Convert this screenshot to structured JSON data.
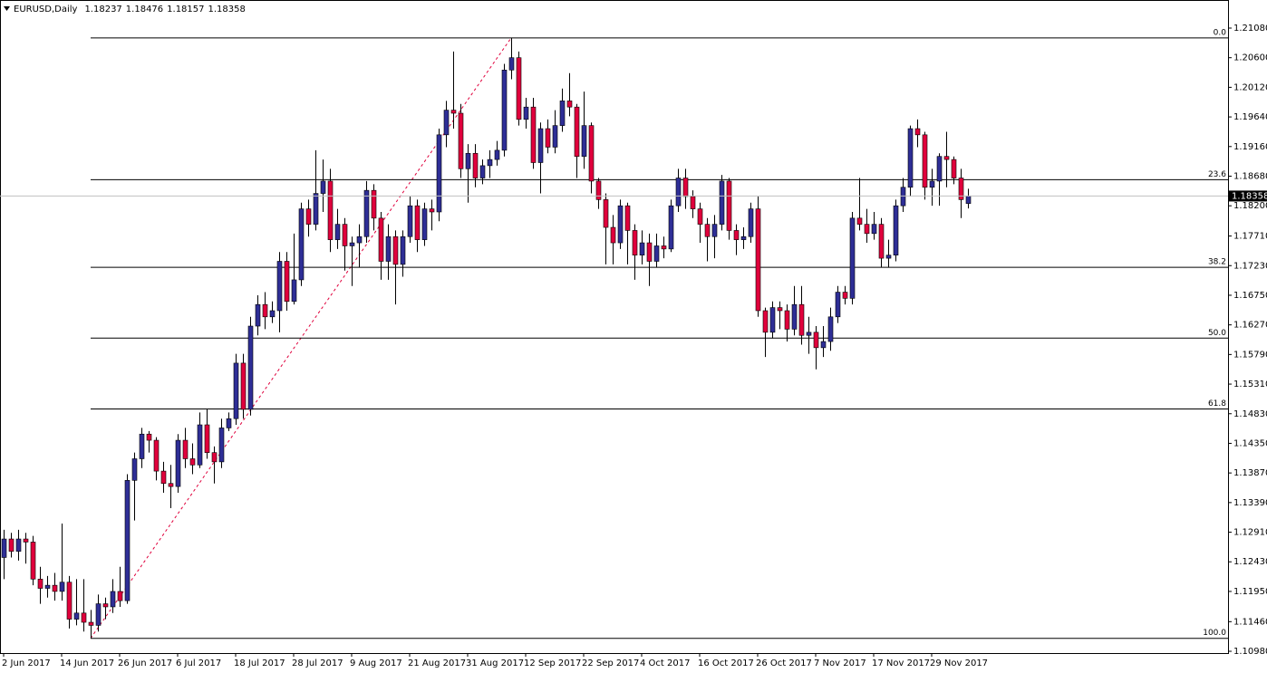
{
  "chart_data": {
    "type": "candlestick",
    "title": "EURUSD,Daily",
    "up_color": "#2e2e96",
    "down_color": "#e0003c",
    "wick_color": "#000000",
    "fib_color": "#e0003c",
    "grid": false,
    "ylim": [
      1.10951,
      1.21535
    ],
    "yticks": [
      {
        "value": 1.2108,
        "label": "1.21080"
      },
      {
        "value": 1.206,
        "label": "1.20600"
      },
      {
        "value": 1.2012,
        "label": "1.20120"
      },
      {
        "value": 1.1964,
        "label": "1.19640"
      },
      {
        "value": 1.1916,
        "label": "1.19160"
      },
      {
        "value": 1.1868,
        "label": "1.18680"
      },
      {
        "value": 1.182,
        "label": "1.18200"
      },
      {
        "value": 1.1771,
        "label": "1.17710"
      },
      {
        "value": 1.1723,
        "label": "1.17230"
      },
      {
        "value": 1.1675,
        "label": "1.16750"
      },
      {
        "value": 1.1627,
        "label": "1.16270"
      },
      {
        "value": 1.1579,
        "label": "1.15790"
      },
      {
        "value": 1.1531,
        "label": "1.15310"
      },
      {
        "value": 1.1483,
        "label": "1.14830"
      },
      {
        "value": 1.1435,
        "label": "1.14350"
      },
      {
        "value": 1.1387,
        "label": "1.13870"
      },
      {
        "value": 1.1339,
        "label": "1.13390"
      },
      {
        "value": 1.1291,
        "label": "1.12910"
      },
      {
        "value": 1.1243,
        "label": "1.12430"
      },
      {
        "value": 1.1195,
        "label": "1.11950"
      },
      {
        "value": 1.1146,
        "label": "1.11460"
      },
      {
        "value": 1.1098,
        "label": "1.10980"
      }
    ],
    "fib_levels": [
      {
        "value": 0,
        "label": "0.0"
      },
      23.6,
      38.2,
      {
        "value": 50,
        "label": "50.0"
      },
      61.8,
      {
        "value": 100,
        "label": "100.0"
      }
    ],
    "categories": [
      "2 Jun 2017",
      null,
      null,
      null,
      null,
      null,
      null,
      null,
      "14 Jun 2017",
      null,
      null,
      null,
      null,
      null,
      null,
      null,
      "26 Jun 2017",
      null,
      null,
      null,
      null,
      null,
      null,
      null,
      "6 Jul 2017",
      null,
      null,
      null,
      null,
      null,
      null,
      null,
      "18 Jul 2017",
      null,
      null,
      null,
      null,
      null,
      null,
      null,
      "28 Jul 2017",
      null,
      null,
      null,
      null,
      null,
      null,
      null,
      "9 Aug 2017",
      null,
      null,
      null,
      null,
      null,
      null,
      null,
      "21 Aug 2017",
      null,
      null,
      null,
      null,
      null,
      null,
      null,
      "31 Aug 2017",
      null,
      null,
      null,
      null,
      null,
      null,
      null,
      "12 Sep 2017",
      null,
      null,
      null,
      null,
      null,
      null,
      null,
      "22 Sep 2017",
      null,
      null,
      null,
      null,
      null,
      null,
      null,
      "4 Oct 2017",
      null,
      null,
      null,
      null,
      null,
      null,
      null,
      "16 Oct 2017",
      null,
      null,
      null,
      null,
      null,
      null,
      null,
      "26 Oct 2017",
      null,
      null,
      null,
      null,
      null,
      null,
      null,
      "7 Nov 2017",
      null,
      null,
      null,
      null,
      null,
      null,
      null,
      "17 Nov 2017",
      null,
      null,
      null,
      null,
      null,
      null,
      null,
      "29 Nov 2017",
      null,
      null,
      null,
      null,
      null
    ],
    "ohlc": [
      [
        1.125,
        1.1295,
        1.1215,
        1.128
      ],
      [
        1.128,
        1.129,
        1.125,
        1.126
      ],
      [
        1.126,
        1.1295,
        1.1245,
        1.128
      ],
      [
        1.128,
        1.129,
        1.124,
        1.1275
      ],
      [
        1.1275,
        1.1285,
        1.1205,
        1.1215
      ],
      [
        1.1215,
        1.1235,
        1.1175,
        1.12
      ],
      [
        1.12,
        1.122,
        1.1185,
        1.1205
      ],
      [
        1.1205,
        1.1225,
        1.118,
        1.1195
      ],
      [
        1.1195,
        1.1305,
        1.118,
        1.121
      ],
      [
        1.121,
        1.122,
        1.1135,
        1.115
      ],
      [
        1.115,
        1.1215,
        1.114,
        1.116
      ],
      [
        1.116,
        1.1215,
        1.113,
        1.1145
      ],
      [
        1.1145,
        1.1165,
        1.1119,
        1.114
      ],
      [
        1.114,
        1.119,
        1.113,
        1.1175
      ],
      [
        1.1175,
        1.1185,
        1.115,
        1.117
      ],
      [
        1.117,
        1.1215,
        1.116,
        1.1195
      ],
      [
        1.1195,
        1.1235,
        1.117,
        1.118
      ],
      [
        1.118,
        1.1385,
        1.1175,
        1.1375
      ],
      [
        1.1375,
        1.142,
        1.131,
        1.141
      ],
      [
        1.141,
        1.146,
        1.1395,
        1.145
      ],
      [
        1.145,
        1.1455,
        1.142,
        1.144
      ],
      [
        1.144,
        1.1445,
        1.1375,
        1.139
      ],
      [
        1.139,
        1.1405,
        1.1355,
        1.137
      ],
      [
        1.137,
        1.14,
        1.133,
        1.1365
      ],
      [
        1.1365,
        1.145,
        1.1355,
        1.144
      ],
      [
        1.144,
        1.146,
        1.1395,
        1.141
      ],
      [
        1.141,
        1.1435,
        1.1385,
        1.14
      ],
      [
        1.14,
        1.1485,
        1.1395,
        1.1465
      ],
      [
        1.1465,
        1.149,
        1.141,
        1.142
      ],
      [
        1.142,
        1.143,
        1.137,
        1.1405
      ],
      [
        1.1405,
        1.1475,
        1.1395,
        1.146
      ],
      [
        1.146,
        1.1485,
        1.1455,
        1.1475
      ],
      [
        1.1475,
        1.158,
        1.1465,
        1.1565
      ],
      [
        1.1565,
        1.158,
        1.1475,
        1.149
      ],
      [
        1.149,
        1.164,
        1.148,
        1.1625
      ],
      [
        1.1625,
        1.1675,
        1.161,
        1.166
      ],
      [
        1.166,
        1.168,
        1.162,
        1.164
      ],
      [
        1.164,
        1.1665,
        1.163,
        1.165
      ],
      [
        1.165,
        1.1745,
        1.1615,
        1.173
      ],
      [
        1.173,
        1.1745,
        1.165,
        1.1665
      ],
      [
        1.1665,
        1.1775,
        1.166,
        1.17
      ],
      [
        1.17,
        1.1825,
        1.169,
        1.1815
      ],
      [
        1.1815,
        1.183,
        1.177,
        1.179
      ],
      [
        1.179,
        1.191,
        1.178,
        1.184
      ],
      [
        1.184,
        1.1895,
        1.181,
        1.186
      ],
      [
        1.186,
        1.188,
        1.1745,
        1.1765
      ],
      [
        1.1765,
        1.1815,
        1.175,
        1.179
      ],
      [
        1.179,
        1.18,
        1.1715,
        1.1755
      ],
      [
        1.1755,
        1.177,
        1.169,
        1.176
      ],
      [
        1.176,
        1.179,
        1.172,
        1.177
      ],
      [
        1.177,
        1.186,
        1.176,
        1.1845
      ],
      [
        1.1845,
        1.1855,
        1.178,
        1.18
      ],
      [
        1.18,
        1.181,
        1.17,
        1.173
      ],
      [
        1.173,
        1.179,
        1.17,
        1.177
      ],
      [
        1.177,
        1.178,
        1.166,
        1.1725
      ],
      [
        1.1725,
        1.178,
        1.1705,
        1.177
      ],
      [
        1.177,
        1.1835,
        1.176,
        1.182
      ],
      [
        1.182,
        1.183,
        1.1745,
        1.1765
      ],
      [
        1.1765,
        1.1825,
        1.1755,
        1.1815
      ],
      [
        1.1815,
        1.183,
        1.178,
        1.181
      ],
      [
        1.181,
        1.1945,
        1.1795,
        1.1935
      ],
      [
        1.1935,
        1.199,
        1.1915,
        1.1975
      ],
      [
        1.1975,
        1.207,
        1.1945,
        1.197
      ],
      [
        1.197,
        1.1985,
        1.1865,
        1.188
      ],
      [
        1.188,
        1.192,
        1.1825,
        1.1905
      ],
      [
        1.1905,
        1.192,
        1.185,
        1.1865
      ],
      [
        1.1865,
        1.1895,
        1.1855,
        1.1885
      ],
      [
        1.1885,
        1.191,
        1.1865,
        1.1895
      ],
      [
        1.1895,
        1.1925,
        1.1885,
        1.191
      ],
      [
        1.191,
        1.205,
        1.19,
        1.204
      ],
      [
        1.204,
        1.2092,
        1.2025,
        1.206
      ],
      [
        1.206,
        1.207,
        1.195,
        1.196
      ],
      [
        1.196,
        1.1995,
        1.1945,
        1.198
      ],
      [
        1.198,
        1.1995,
        1.188,
        1.189
      ],
      [
        1.189,
        1.1955,
        1.184,
        1.1945
      ],
      [
        1.1945,
        1.196,
        1.1905,
        1.1915
      ],
      [
        1.1915,
        1.1975,
        1.1905,
        1.195
      ],
      [
        1.195,
        1.201,
        1.194,
        1.199
      ],
      [
        1.199,
        1.2035,
        1.1965,
        1.198
      ],
      [
        1.198,
        1.1985,
        1.1865,
        1.19
      ],
      [
        1.19,
        1.2005,
        1.188,
        1.195
      ],
      [
        1.195,
        1.1955,
        1.184,
        1.186
      ],
      [
        1.186,
        1.1865,
        1.1815,
        1.183
      ],
      [
        1.183,
        1.184,
        1.1725,
        1.1785
      ],
      [
        1.1785,
        1.1805,
        1.1725,
        1.176
      ],
      [
        1.176,
        1.183,
        1.175,
        1.182
      ],
      [
        1.182,
        1.1825,
        1.1725,
        1.178
      ],
      [
        1.178,
        1.179,
        1.17,
        1.174
      ],
      [
        1.174,
        1.178,
        1.1725,
        1.176
      ],
      [
        1.176,
        1.1775,
        1.169,
        1.173
      ],
      [
        1.173,
        1.1775,
        1.172,
        1.1755
      ],
      [
        1.1755,
        1.177,
        1.1735,
        1.175
      ],
      [
        1.175,
        1.183,
        1.1745,
        1.182
      ],
      [
        1.182,
        1.188,
        1.181,
        1.1865
      ],
      [
        1.1865,
        1.188,
        1.1815,
        1.1835
      ],
      [
        1.1835,
        1.1845,
        1.18,
        1.1815
      ],
      [
        1.1815,
        1.1825,
        1.176,
        1.179
      ],
      [
        1.179,
        1.18,
        1.173,
        1.177
      ],
      [
        1.177,
        1.1805,
        1.1735,
        1.179
      ],
      [
        1.179,
        1.187,
        1.178,
        1.186
      ],
      [
        1.186,
        1.1865,
        1.1765,
        1.178
      ],
      [
        1.178,
        1.179,
        1.174,
        1.1765
      ],
      [
        1.1765,
        1.1785,
        1.175,
        1.177
      ],
      [
        1.177,
        1.1825,
        1.176,
        1.1815
      ],
      [
        1.1815,
        1.1835,
        1.164,
        1.165
      ],
      [
        1.165,
        1.1655,
        1.1575,
        1.1615
      ],
      [
        1.1615,
        1.1665,
        1.1605,
        1.1655
      ],
      [
        1.1655,
        1.1665,
        1.162,
        1.165
      ],
      [
        1.165,
        1.166,
        1.16,
        1.162
      ],
      [
        1.162,
        1.169,
        1.161,
        1.166
      ],
      [
        1.166,
        1.169,
        1.1595,
        1.161
      ],
      [
        1.161,
        1.164,
        1.158,
        1.1615
      ],
      [
        1.1615,
        1.1625,
        1.1555,
        1.159
      ],
      [
        1.159,
        1.1625,
        1.1575,
        1.16
      ],
      [
        1.16,
        1.1655,
        1.1585,
        1.164
      ],
      [
        1.164,
        1.169,
        1.163,
        1.168
      ],
      [
        1.168,
        1.169,
        1.166,
        1.167
      ],
      [
        1.167,
        1.181,
        1.166,
        1.18
      ],
      [
        1.18,
        1.1865,
        1.178,
        1.179
      ],
      [
        1.179,
        1.1815,
        1.176,
        1.1775
      ],
      [
        1.1775,
        1.181,
        1.1765,
        1.179
      ],
      [
        1.179,
        1.18,
        1.172,
        1.1735
      ],
      [
        1.1735,
        1.1765,
        1.172,
        1.174
      ],
      [
        1.174,
        1.183,
        1.173,
        1.182
      ],
      [
        1.182,
        1.1865,
        1.181,
        1.185
      ],
      [
        1.185,
        1.195,
        1.1835,
        1.1945
      ],
      [
        1.1945,
        1.196,
        1.1915,
        1.1935
      ],
      [
        1.1935,
        1.194,
        1.183,
        1.185
      ],
      [
        1.185,
        1.188,
        1.182,
        1.186
      ],
      [
        1.186,
        1.1905,
        1.182,
        1.19
      ],
      [
        1.19,
        1.194,
        1.185,
        1.1895
      ],
      [
        1.1895,
        1.19,
        1.1855,
        1.1865
      ],
      [
        1.1865,
        1.188,
        1.18,
        1.183
      ],
      [
        1.18237,
        1.18476,
        1.18157,
        1.18358
      ]
    ]
  }
}
